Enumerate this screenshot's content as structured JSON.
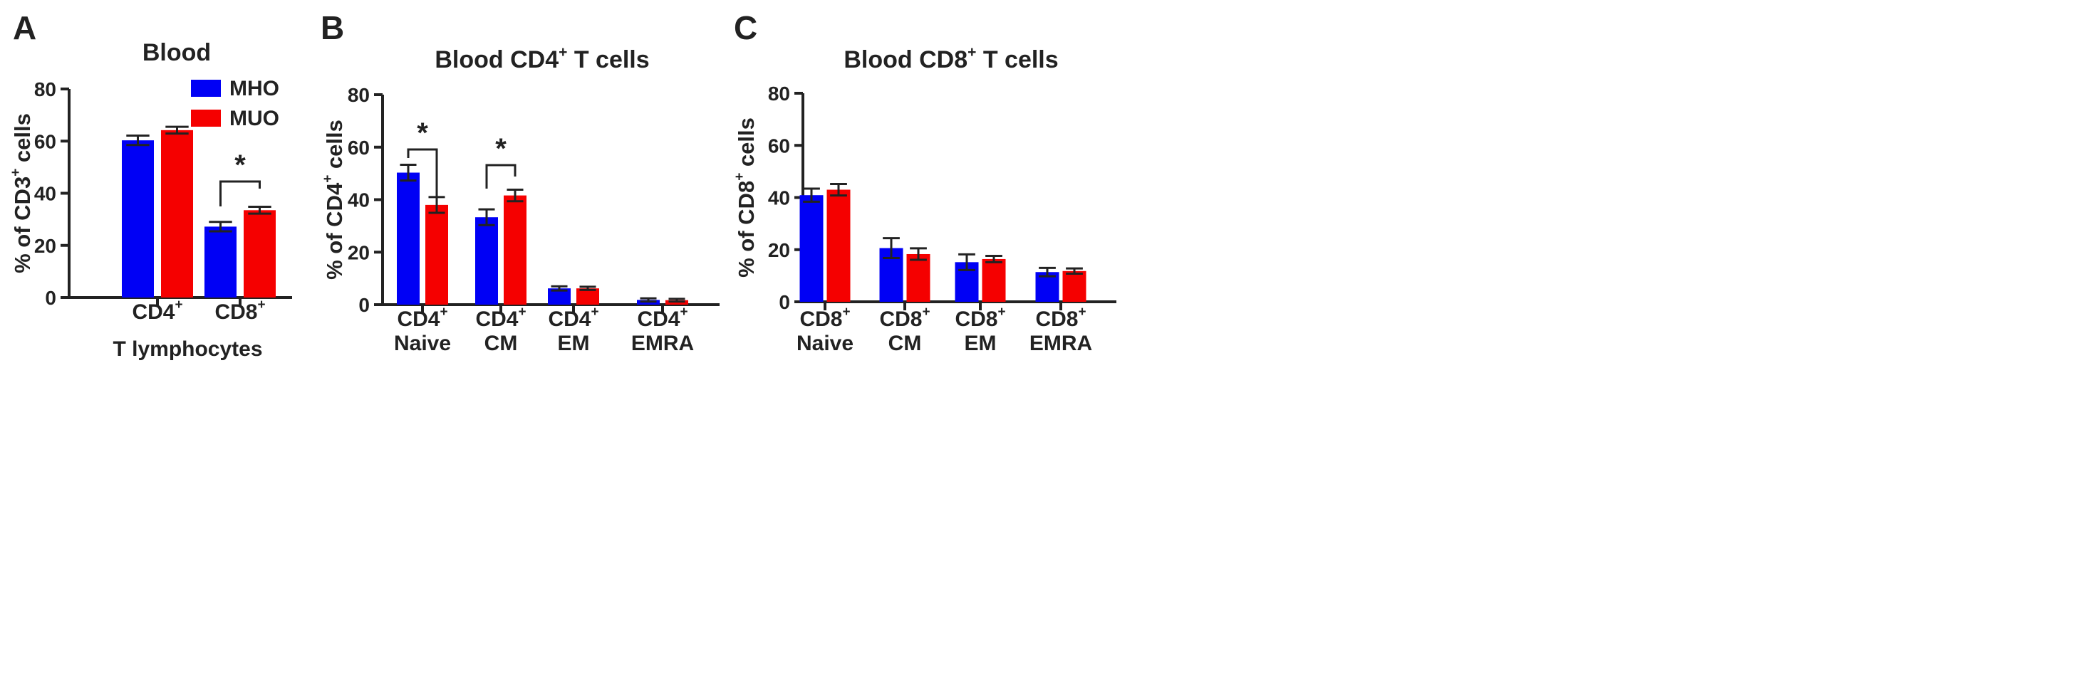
{
  "colors": {
    "mho": "#0000F5",
    "muo": "#F50000",
    "ink": "#222222"
  },
  "legend": [
    {
      "name": "MHO",
      "color": "#0000F5"
    },
    {
      "name": "MUO",
      "color": "#F50000"
    }
  ],
  "chart_data": [
    {
      "panel": "A",
      "type": "bar",
      "title": "Blood",
      "ylabel": {
        "pre": "% of CD3",
        "sup": "+",
        "post": " cells"
      },
      "xlabel": "T lymphocytes",
      "ylim": [
        0,
        80
      ],
      "yticks": [
        "0",
        "20",
        "40",
        "60",
        "80"
      ],
      "categories": [
        {
          "lines": [
            {
              "base": "CD4",
              "sup": "+"
            }
          ]
        },
        {
          "lines": [
            {
              "base": "CD8",
              "sup": "+"
            }
          ]
        }
      ],
      "series": [
        {
          "name": "MHO",
          "values": [
            60.3,
            27.2
          ],
          "errors": [
            1.8,
            1.8
          ]
        },
        {
          "name": "MUO",
          "values": [
            64.2,
            33.5
          ],
          "errors": [
            1.3,
            1.3
          ]
        }
      ],
      "significance": [
        {
          "category": 1,
          "label": "*"
        }
      ]
    },
    {
      "panel": "B",
      "type": "bar",
      "title": {
        "pre": "Blood CD4",
        "sup": "+",
        "post": " T cells"
      },
      "ylabel": {
        "pre": "% of CD4",
        "sup": "+",
        "post": " cells"
      },
      "xlabel": "",
      "ylim": [
        0,
        80
      ],
      "yticks": [
        "0",
        "20",
        "40",
        "60",
        "80"
      ],
      "categories": [
        {
          "lines": [
            {
              "base": "CD4",
              "sup": "+"
            },
            {
              "base": "Naive",
              "sup": ""
            }
          ]
        },
        {
          "lines": [
            {
              "base": "CD4",
              "sup": "+"
            },
            {
              "base": "CM",
              "sup": ""
            }
          ]
        },
        {
          "lines": [
            {
              "base": "CD4",
              "sup": "+"
            },
            {
              "base": "EM",
              "sup": ""
            }
          ]
        },
        {
          "lines": [
            {
              "base": "CD4",
              "sup": "+"
            },
            {
              "base": "EMRA",
              "sup": ""
            }
          ]
        }
      ],
      "series": [
        {
          "name": "MHO",
          "values": [
            50.3,
            33.3,
            6.2,
            1.8
          ],
          "errors": [
            3.0,
            3.0,
            0.8,
            0.6
          ]
        },
        {
          "name": "MUO",
          "values": [
            38.0,
            41.6,
            6.2,
            1.7
          ],
          "errors": [
            3.0,
            2.2,
            0.6,
            0.5
          ]
        }
      ],
      "significance": [
        {
          "category": 0,
          "label": "*"
        },
        {
          "category": 1,
          "label": "*"
        }
      ]
    },
    {
      "panel": "C",
      "type": "bar",
      "title": {
        "pre": "Blood CD8",
        "sup": "+",
        "post": " T cells"
      },
      "ylabel": {
        "pre": "% of CD8",
        "sup": "+",
        "post": " cells"
      },
      "xlabel": "",
      "ylim": [
        0,
        80
      ],
      "yticks": [
        "0",
        "20",
        "40",
        "60",
        "80"
      ],
      "categories": [
        {
          "lines": [
            {
              "base": "CD8",
              "sup": "+"
            },
            {
              "base": "Naive",
              "sup": ""
            }
          ]
        },
        {
          "lines": [
            {
              "base": "CD8",
              "sup": "+"
            },
            {
              "base": "CM",
              "sup": ""
            }
          ]
        },
        {
          "lines": [
            {
              "base": "CD8",
              "sup": "+"
            },
            {
              "base": "EM",
              "sup": ""
            }
          ]
        },
        {
          "lines": [
            {
              "base": "CD8",
              "sup": "+"
            },
            {
              "base": "EMRA",
              "sup": ""
            }
          ]
        }
      ],
      "series": [
        {
          "name": "MHO",
          "values": [
            40.9,
            20.6,
            15.2,
            11.4
          ],
          "errors": [
            2.5,
            3.8,
            3.0,
            1.6
          ]
        },
        {
          "name": "MUO",
          "values": [
            43.0,
            18.3,
            16.4,
            11.8
          ],
          "errors": [
            2.2,
            2.2,
            1.2,
            1.0
          ]
        }
      ],
      "significance": []
    }
  ]
}
